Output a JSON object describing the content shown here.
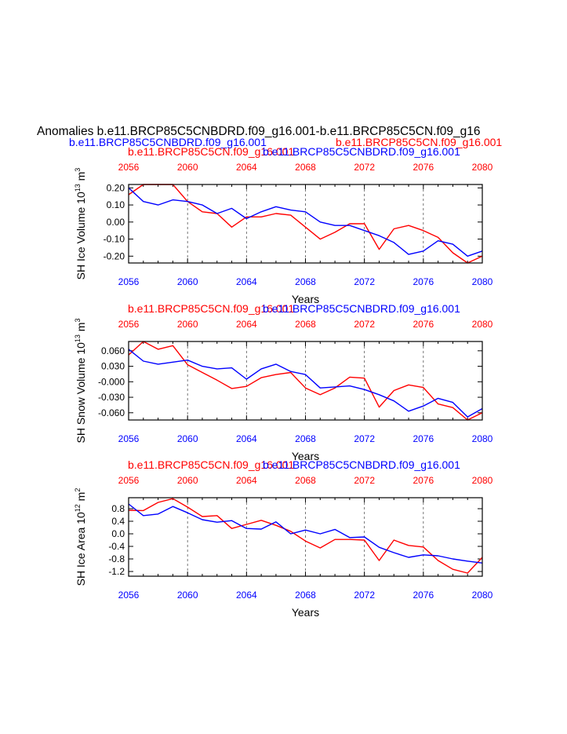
{
  "figure": {
    "title": "Anomalies b.e11.BRCP85C5CNBDRD.f09_g16.001-b.e11.BRCP85C5CN.f09_g16",
    "legend_blue": "b.e11.BRCP85C5CNBDRD.f09_g16.001",
    "legend_red": "b.e11.BRCP85C5CN.f09_g16.001"
  },
  "colors": {
    "red": "#ff0000",
    "blue": "#0000ff",
    "black": "#000000"
  },
  "chart_data": [
    {
      "type": "line",
      "ylabel_parts": [
        "SH Ice Volume 10",
        "13",
        " m",
        "3"
      ],
      "xlabel": "Years",
      "top_title_red": "b.e11.BRCP85C5CN.f09_g16.001",
      "top_title_blue": "b.e11.BRCP85C5CNBDRD.f09_g16.001",
      "xlim": [
        2056,
        2080
      ],
      "ylim": [
        -0.24,
        0.22
      ],
      "xticks": [
        "2056",
        "2060",
        "2064",
        "2068",
        "2072",
        "2076",
        "2080"
      ],
      "yticks": [
        {
          "value": 0.2,
          "label": "0.20"
        },
        {
          "value": 0.1,
          "label": "0.10"
        },
        {
          "value": 0.0,
          "label": "0.00"
        },
        {
          "value": -0.1,
          "label": "-0.10"
        },
        {
          "value": -0.2,
          "label": "-0.20"
        }
      ],
      "x": [
        2056,
        2057,
        2058,
        2059,
        2060,
        2061,
        2062,
        2063,
        2064,
        2065,
        2066,
        2067,
        2068,
        2069,
        2070,
        2071,
        2072,
        2073,
        2074,
        2075,
        2076,
        2077,
        2078,
        2079,
        2080
      ],
      "series": [
        {
          "name": "b.e11.BRCP85C5CN.f09_g16.001",
          "color": "#ff0000",
          "values": [
            0.16,
            0.23,
            0.23,
            0.22,
            0.12,
            0.06,
            0.05,
            -0.03,
            0.03,
            0.03,
            0.05,
            0.04,
            -0.03,
            -0.1,
            -0.06,
            -0.01,
            -0.01,
            -0.16,
            -0.04,
            -0.02,
            -0.05,
            -0.09,
            -0.18,
            -0.24,
            -0.2
          ]
        },
        {
          "name": "b.e11.BRCP85C5CNBDRD.f09_g16.001",
          "color": "#0000ff",
          "values": [
            0.2,
            0.12,
            0.1,
            0.13,
            0.12,
            0.1,
            0.05,
            0.08,
            0.02,
            0.06,
            0.09,
            0.07,
            0.06,
            0.0,
            -0.02,
            -0.02,
            -0.05,
            -0.08,
            -0.12,
            -0.19,
            -0.17,
            -0.11,
            -0.13,
            -0.2,
            -0.17
          ]
        }
      ]
    },
    {
      "type": "line",
      "ylabel_parts": [
        "SH Snow Volume 10",
        "13",
        " m",
        "3"
      ],
      "xlabel": "Years",
      "top_title_red": "b.e11.BRCP85C5CN.f09_g16.001",
      "top_title_blue": "b.e11.BRCP85C5CNBDRD.f09_g16.001",
      "xlim": [
        2056,
        2080
      ],
      "ylim": [
        -0.074,
        0.078
      ],
      "xticks": [
        "2056",
        "2060",
        "2064",
        "2068",
        "2072",
        "2076",
        "2080"
      ],
      "yticks": [
        {
          "value": 0.06,
          "label": "0.060"
        },
        {
          "value": 0.03,
          "label": "0.030"
        },
        {
          "value": 0.0,
          "label": "-0.000"
        },
        {
          "value": -0.03,
          "label": "-0.030"
        },
        {
          "value": -0.06,
          "label": "-0.060"
        }
      ],
      "x": [
        2056,
        2057,
        2058,
        2059,
        2060,
        2061,
        2062,
        2063,
        2064,
        2065,
        2066,
        2067,
        2068,
        2069,
        2070,
        2071,
        2072,
        2073,
        2074,
        2075,
        2076,
        2077,
        2078,
        2079,
        2080
      ],
      "series": [
        {
          "name": "b.e11.BRCP85C5CN.f09_g16.001",
          "color": "#ff0000",
          "values": [
            0.052,
            0.078,
            0.063,
            0.07,
            0.033,
            0.018,
            0.003,
            -0.013,
            -0.009,
            0.008,
            0.014,
            0.018,
            -0.012,
            -0.025,
            -0.012,
            0.009,
            0.007,
            -0.049,
            -0.017,
            -0.006,
            -0.011,
            -0.043,
            -0.05,
            -0.074,
            -0.06
          ]
        },
        {
          "name": "b.e11.BRCP85C5CNBDRD.f09_g16.001",
          "color": "#0000ff",
          "values": [
            0.063,
            0.04,
            0.034,
            0.038,
            0.042,
            0.03,
            0.025,
            0.027,
            0.005,
            0.025,
            0.034,
            0.02,
            0.014,
            -0.012,
            -0.01,
            -0.008,
            -0.015,
            -0.025,
            -0.037,
            -0.057,
            -0.047,
            -0.032,
            -0.04,
            -0.068,
            -0.052
          ]
        }
      ]
    },
    {
      "type": "line",
      "ylabel_parts": [
        "SH Ice Area 10",
        "12",
        " m",
        "2"
      ],
      "xlabel": "Years",
      "top_title_red": "b.e11.BRCP85C5CN.f09_g16.001",
      "top_title_blue": "b.e11.BRCP85C5CNBDRD.f09_g16.001",
      "xlim": [
        2056,
        2080
      ],
      "ylim": [
        -1.35,
        1.15
      ],
      "xticks": [
        "2056",
        "2060",
        "2064",
        "2068",
        "2072",
        "2076",
        "2080"
      ],
      "yticks": [
        {
          "value": 0.8,
          "label": "0.8"
        },
        {
          "value": 0.4,
          "label": "0.4"
        },
        {
          "value": 0.0,
          "label": "0.0"
        },
        {
          "value": -0.4,
          "label": "-0.4"
        },
        {
          "value": -0.8,
          "label": "-0.8"
        },
        {
          "value": -1.2,
          "label": "-1.2"
        }
      ],
      "x": [
        2056,
        2057,
        2058,
        2059,
        2060,
        2061,
        2062,
        2063,
        2064,
        2065,
        2066,
        2067,
        2068,
        2069,
        2070,
        2071,
        2072,
        2073,
        2074,
        2075,
        2076,
        2077,
        2078,
        2079,
        2080
      ],
      "series": [
        {
          "name": "b.e11.BRCP85C5CN.f09_g16.001",
          "color": "#ff0000",
          "values": [
            0.75,
            0.74,
            1.0,
            1.12,
            0.85,
            0.55,
            0.58,
            0.17,
            0.3,
            0.43,
            0.27,
            0.08,
            -0.23,
            -0.45,
            -0.18,
            -0.18,
            -0.2,
            -0.85,
            -0.2,
            -0.37,
            -0.42,
            -0.85,
            -1.13,
            -1.25,
            -0.75
          ]
        },
        {
          "name": "b.e11.BRCP85C5CNBDRD.f09_g16.001",
          "color": "#0000ff",
          "values": [
            0.95,
            0.58,
            0.63,
            0.87,
            0.67,
            0.45,
            0.37,
            0.42,
            0.17,
            0.15,
            0.38,
            0.0,
            0.12,
            0.0,
            0.14,
            -0.12,
            -0.1,
            -0.43,
            -0.6,
            -0.75,
            -0.67,
            -0.7,
            -0.8,
            -0.87,
            -0.93
          ]
        }
      ]
    }
  ]
}
